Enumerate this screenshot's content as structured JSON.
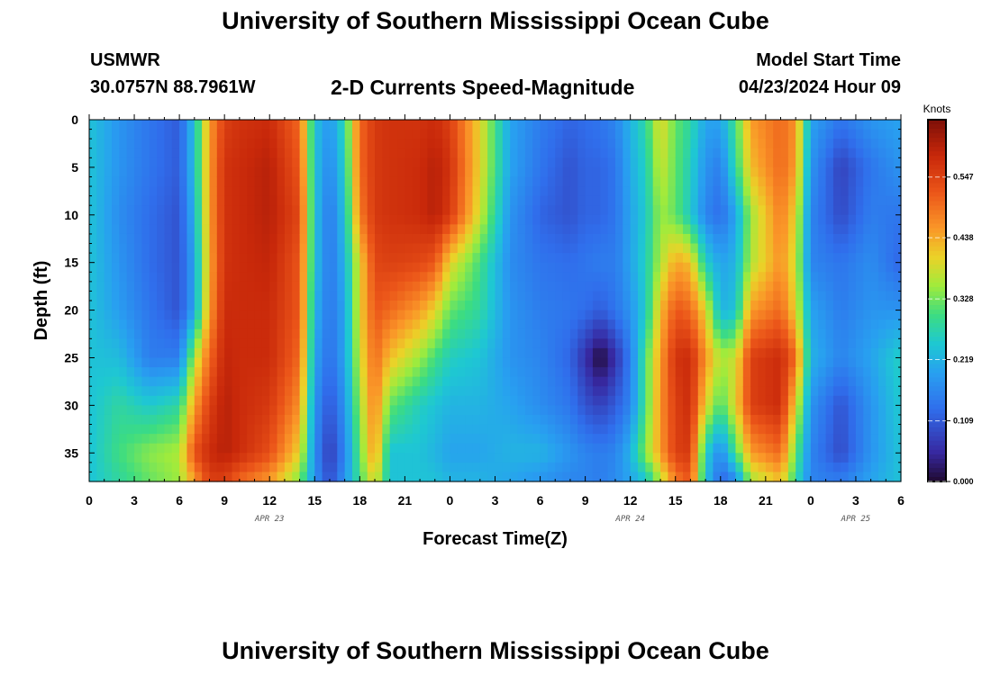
{
  "header": {
    "title": "University of Southern Mississippi Ocean Cube",
    "station": "USMWR",
    "coords": "30.0757N  88.7961W",
    "subtitle": "2-D Currents Speed-Magnitude",
    "model_start_label": "Model Start Time",
    "model_start_value": "04/23/2024 Hour 09"
  },
  "footer": {
    "title": "University of Southern Mississippi Ocean Cube"
  },
  "chart_data": {
    "type": "heatmap",
    "title": "2-D Currents Speed-Magnitude",
    "xlabel": "Forecast Time(Z)",
    "ylabel": "Depth (ft)",
    "x_range": [
      0,
      54
    ],
    "y_range": [
      0,
      38
    ],
    "x_tick_values": [
      0,
      3,
      6,
      9,
      12,
      15,
      18,
      21,
      24,
      27,
      30,
      33,
      36,
      39,
      42,
      45,
      48,
      51,
      54
    ],
    "x_tick_labels": [
      "0",
      "3",
      "6",
      "9",
      "12",
      "15",
      "18",
      "21",
      "0",
      "3",
      "6",
      "9",
      "12",
      "15",
      "18",
      "21",
      "0",
      "3",
      "6"
    ],
    "y_tick_values": [
      0,
      5,
      10,
      15,
      20,
      25,
      30,
      35
    ],
    "y_tick_labels": [
      "0",
      "5",
      "10",
      "15",
      "20",
      "25",
      "30",
      "35"
    ],
    "day_labels": [
      {
        "text": "APR 23",
        "x": 12
      },
      {
        "text": "APR 24",
        "x": 36
      },
      {
        "text": "APR 25",
        "x": 51
      }
    ],
    "colorbar": {
      "unit": "Knots",
      "min": 0,
      "max": 0.65,
      "ticks": [
        0.0,
        0.109,
        0.219,
        0.328,
        0.438,
        0.547
      ],
      "tick_labels": [
        "0.000",
        "0.109",
        "0.219",
        "0.328",
        "0.438",
        "0.547"
      ]
    },
    "x_grid": [
      0,
      2,
      4,
      6,
      7,
      8,
      9,
      10,
      12,
      14,
      15,
      16,
      17,
      18,
      19,
      20,
      22,
      23,
      24,
      26,
      28,
      30,
      32,
      33,
      34,
      35,
      36,
      37,
      38,
      39,
      40,
      41,
      42,
      43,
      44,
      46,
      47,
      48,
      50,
      52,
      54
    ],
    "x_grid_note": "forecast hours (0-54) of each knot column",
    "depths": [
      0,
      5,
      10,
      15,
      20,
      25,
      30,
      35,
      38
    ],
    "values_knots": [
      [
        0.24,
        0.24,
        0.24,
        0.24,
        0.24,
        0.24,
        0.24,
        0.24,
        0.24
      ],
      [
        0.18,
        0.18,
        0.17,
        0.18,
        0.19,
        0.23,
        0.28,
        0.3,
        0.28
      ],
      [
        0.14,
        0.14,
        0.13,
        0.13,
        0.14,
        0.15,
        0.25,
        0.34,
        0.32
      ],
      [
        0.11,
        0.11,
        0.1,
        0.1,
        0.1,
        0.15,
        0.28,
        0.36,
        0.35
      ],
      [
        0.24,
        0.24,
        0.22,
        0.2,
        0.2,
        0.36,
        0.45,
        0.53,
        0.45
      ],
      [
        0.45,
        0.45,
        0.45,
        0.44,
        0.45,
        0.5,
        0.55,
        0.58,
        0.55
      ],
      [
        0.55,
        0.57,
        0.57,
        0.57,
        0.58,
        0.59,
        0.6,
        0.6,
        0.55
      ],
      [
        0.57,
        0.58,
        0.58,
        0.58,
        0.58,
        0.58,
        0.58,
        0.58,
        0.5
      ],
      [
        0.58,
        0.6,
        0.6,
        0.59,
        0.58,
        0.58,
        0.56,
        0.53,
        0.45
      ],
      [
        0.5,
        0.52,
        0.54,
        0.52,
        0.52,
        0.5,
        0.46,
        0.4,
        0.33
      ],
      [
        0.24,
        0.24,
        0.24,
        0.24,
        0.22,
        0.2,
        0.18,
        0.17,
        0.18
      ],
      [
        0.18,
        0.16,
        0.14,
        0.14,
        0.14,
        0.13,
        0.1,
        0.07,
        0.09
      ],
      [
        0.28,
        0.26,
        0.24,
        0.22,
        0.2,
        0.2,
        0.18,
        0.16,
        0.18
      ],
      [
        0.5,
        0.5,
        0.48,
        0.4,
        0.4,
        0.38,
        0.35,
        0.32,
        0.3
      ],
      [
        0.56,
        0.56,
        0.56,
        0.54,
        0.52,
        0.5,
        0.48,
        0.46,
        0.4
      ],
      [
        0.57,
        0.57,
        0.57,
        0.55,
        0.5,
        0.42,
        0.32,
        0.24,
        0.24
      ],
      [
        0.57,
        0.58,
        0.58,
        0.54,
        0.45,
        0.35,
        0.26,
        0.24,
        0.24
      ],
      [
        0.58,
        0.6,
        0.6,
        0.52,
        0.4,
        0.3,
        0.24,
        0.22,
        0.24
      ],
      [
        0.55,
        0.57,
        0.56,
        0.4,
        0.32,
        0.26,
        0.22,
        0.2,
        0.22
      ],
      [
        0.4,
        0.4,
        0.38,
        0.3,
        0.28,
        0.24,
        0.22,
        0.2,
        0.22
      ],
      [
        0.2,
        0.2,
        0.18,
        0.17,
        0.18,
        0.18,
        0.2,
        0.22,
        0.2
      ],
      [
        0.15,
        0.14,
        0.12,
        0.14,
        0.15,
        0.16,
        0.17,
        0.22,
        0.18
      ],
      [
        0.12,
        0.1,
        0.1,
        0.13,
        0.14,
        0.12,
        0.14,
        0.18,
        0.16
      ],
      [
        0.13,
        0.12,
        0.12,
        0.14,
        0.13,
        0.06,
        0.1,
        0.16,
        0.16
      ],
      [
        0.14,
        0.12,
        0.12,
        0.15,
        0.11,
        0.0,
        0.08,
        0.15,
        0.15
      ],
      [
        0.16,
        0.14,
        0.14,
        0.15,
        0.14,
        0.06,
        0.11,
        0.16,
        0.17
      ],
      [
        0.22,
        0.21,
        0.2,
        0.2,
        0.18,
        0.15,
        0.16,
        0.22,
        0.2
      ],
      [
        0.28,
        0.26,
        0.25,
        0.26,
        0.25,
        0.3,
        0.3,
        0.34,
        0.24
      ],
      [
        0.4,
        0.38,
        0.35,
        0.36,
        0.42,
        0.45,
        0.46,
        0.45,
        0.36
      ],
      [
        0.32,
        0.32,
        0.32,
        0.44,
        0.52,
        0.57,
        0.55,
        0.55,
        0.48
      ],
      [
        0.28,
        0.26,
        0.25,
        0.42,
        0.5,
        0.58,
        0.58,
        0.56,
        0.52
      ],
      [
        0.2,
        0.18,
        0.16,
        0.26,
        0.4,
        0.46,
        0.4,
        0.26,
        0.24
      ],
      [
        0.2,
        0.15,
        0.13,
        0.2,
        0.22,
        0.36,
        0.3,
        0.16,
        0.12
      ],
      [
        0.3,
        0.28,
        0.2,
        0.22,
        0.24,
        0.38,
        0.4,
        0.3,
        0.16
      ],
      [
        0.45,
        0.42,
        0.35,
        0.36,
        0.45,
        0.55,
        0.55,
        0.45,
        0.35
      ],
      [
        0.5,
        0.5,
        0.48,
        0.46,
        0.5,
        0.58,
        0.58,
        0.5,
        0.42
      ],
      [
        0.46,
        0.45,
        0.4,
        0.38,
        0.4,
        0.5,
        0.4,
        0.32,
        0.28
      ],
      [
        0.2,
        0.18,
        0.16,
        0.16,
        0.2,
        0.22,
        0.18,
        0.16,
        0.16
      ],
      [
        0.14,
        0.08,
        0.09,
        0.14,
        0.15,
        0.16,
        0.1,
        0.09,
        0.15
      ],
      [
        0.18,
        0.14,
        0.15,
        0.17,
        0.18,
        0.2,
        0.18,
        0.18,
        0.2
      ],
      [
        0.2,
        0.18,
        0.14,
        0.12,
        0.18,
        0.26,
        0.25,
        0.24,
        0.24
      ]
    ]
  }
}
